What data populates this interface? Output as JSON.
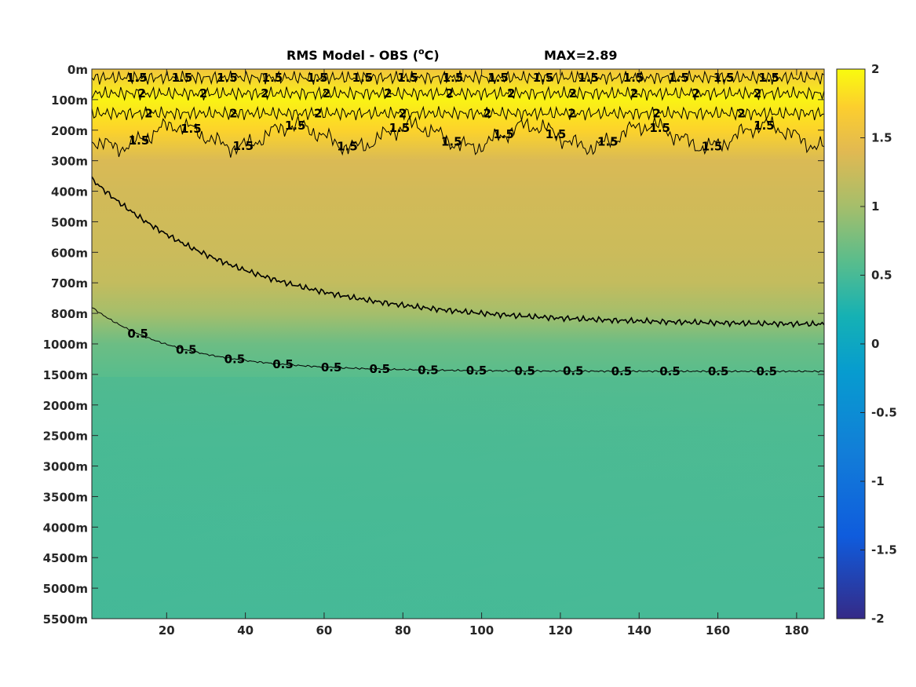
{
  "chart_data": {
    "type": "heatmap",
    "title": {
      "main": "RMS Model - OBS (",
      "superscript": "o",
      "unit_suffix": "C)",
      "max_label": "MAX=2.89"
    },
    "x": {
      "range": [
        1,
        187
      ],
      "ticks": [
        20,
        40,
        60,
        80,
        100,
        120,
        140,
        160,
        180
      ]
    },
    "y": {
      "reversed": true,
      "tick_labels": [
        "0m",
        "100m",
        "200m",
        "300m",
        "400m",
        "500m",
        "600m",
        "700m",
        "800m",
        "1000m",
        "1500m",
        "2000m",
        "2500m",
        "3000m",
        "3500m",
        "4000m",
        "4500m",
        "5000m",
        "5500m"
      ]
    },
    "colorbar": {
      "range": [
        -2,
        2
      ],
      "tick_labels": [
        "2",
        "1.5",
        "1",
        "0.5",
        "0",
        "-0.5",
        "-1",
        "-1.5",
        "-2"
      ],
      "colormap": "parula"
    },
    "value_profile": {
      "depth_index": [
        0,
        1,
        2,
        3,
        4,
        5,
        6,
        7,
        8,
        9,
        10,
        12,
        15,
        18
      ],
      "values": [
        1.6,
        1.95,
        1.75,
        1.35,
        1.3,
        1.28,
        1.25,
        1.2,
        1.0,
        0.7,
        0.6,
        0.55,
        0.52,
        0.5
      ]
    },
    "contours": [
      {
        "level": 1.5,
        "depth_index": 0.28,
        "labels": [
          "1.5",
          "1.5",
          "1.5",
          "1.5",
          "1.5",
          "1.5",
          "1.5",
          "1.5",
          "1.5",
          "1.5",
          "1.5",
          "1.5",
          "1.5",
          "1.5",
          "1.5"
        ]
      },
      {
        "level": 2,
        "depth_index": 0.8,
        "labels": [
          "2",
          "2",
          "2",
          "2",
          "2",
          "2",
          "2",
          "2",
          "2",
          "2",
          "2"
        ]
      },
      {
        "level": 2,
        "depth_index": 1.45,
        "labels": [
          "2",
          "2",
          "2",
          "2",
          "2",
          "2",
          "2",
          "2"
        ]
      },
      {
        "level": 1.5,
        "depth_index": 2.3,
        "labels": [
          "1.5",
          "1.5",
          "1.5",
          "1.5",
          "1.5",
          "1.5",
          "1.5",
          "1.5",
          "1.5",
          "1.5",
          "1.5",
          "1.5",
          "1.5"
        ]
      },
      {
        "level": 1,
        "depth_index": 4.0,
        "labels": []
      },
      {
        "level": 0.5,
        "depth_index": 8.5,
        "labels": [
          "0.5",
          "0.5",
          "0.5",
          "0.5",
          "0.5",
          "0.5",
          "0.5",
          "0.5",
          "0.5",
          "0.5",
          "0.5",
          "0.5",
          "0.5",
          "0.5"
        ]
      }
    ]
  }
}
